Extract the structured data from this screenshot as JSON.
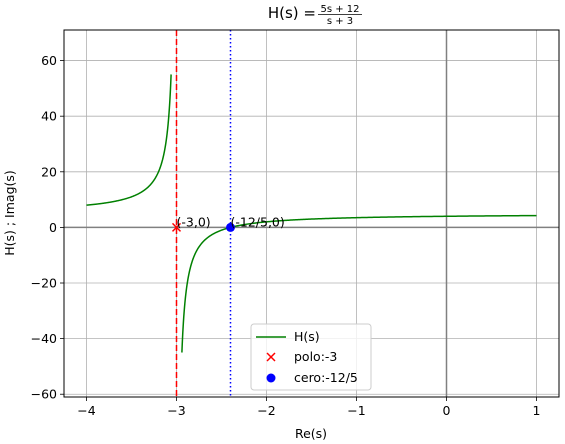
{
  "chart_data": {
    "type": "line",
    "title": {
      "prefix": "H(s) = ",
      "numerator": "5s + 12",
      "denominator": "s + 3"
    },
    "xlabel": "Re(s)",
    "ylabel": "H(s) ; Imag(s)",
    "xlim": [
      -4.25,
      1.25
    ],
    "ylim": [
      -61,
      71
    ],
    "xticks": [
      -4,
      -3,
      -2,
      -1,
      0,
      1
    ],
    "xtick_labels": [
      "−4",
      "−3",
      "−2",
      "−1",
      "0",
      "1"
    ],
    "yticks": [
      -60,
      -40,
      -20,
      0,
      20,
      40,
      60
    ],
    "ytick_labels": [
      "−60",
      "−40",
      "−20",
      "0",
      "20",
      "40",
      "60"
    ],
    "grid": true,
    "function": {
      "numerator": [
        5,
        12
      ],
      "denominator": [
        1,
        3
      ]
    },
    "series": [
      {
        "name": "H(s)",
        "color": "#008000",
        "x_range": [
          -4.0,
          -3.06
        ],
        "dense_near": -3.06
      },
      {
        "name": "H(s)",
        "color": "#008000",
        "x_range": [
          -2.94,
          1.0
        ],
        "dense_near": -2.94
      }
    ],
    "pole": {
      "x": -3,
      "y": 0,
      "legend": "polo:-3",
      "label": "(-3,0)",
      "color": "#ff0000",
      "line_style": "dashed"
    },
    "zero": {
      "x": -2.4,
      "y": 0,
      "legend": "cero:-12/5",
      "label": "(-12/5,0)",
      "color": "#0000ff",
      "line_style": "dotted"
    },
    "legend": {
      "placement": "lower-center",
      "entries": [
        {
          "label": "H(s)",
          "kind": "line",
          "color": "#008000"
        },
        {
          "label": "polo:-3",
          "kind": "x-marker",
          "color": "#ff0000"
        },
        {
          "label": "cero:-12/5",
          "kind": "dot-marker",
          "color": "#0000ff"
        }
      ]
    }
  }
}
